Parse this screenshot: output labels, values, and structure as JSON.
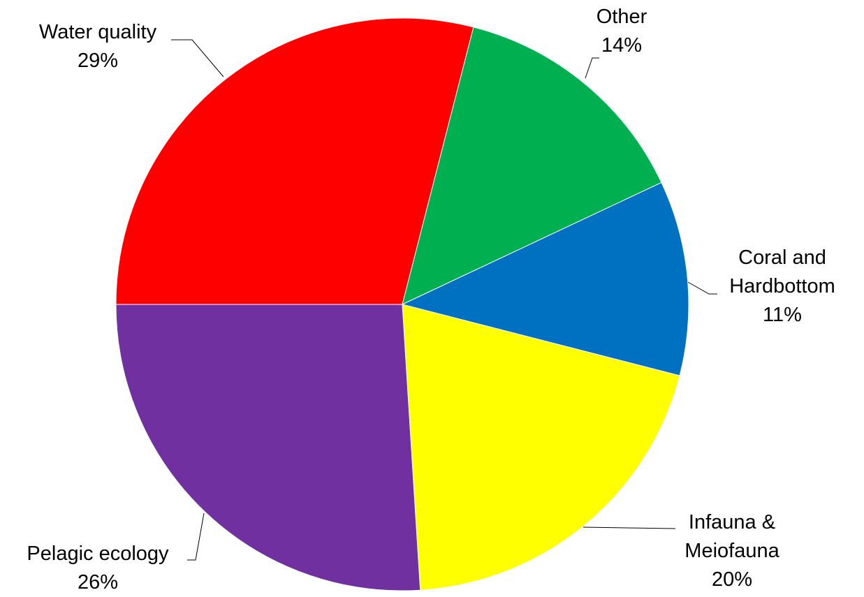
{
  "chart_data": {
    "type": "pie",
    "categories": [
      "Water quality",
      "Other",
      "Coral and Hardbottom",
      "Infauna & Meiofauna",
      "Pelagic ecology"
    ],
    "values": [
      29,
      14,
      11,
      20,
      26
    ],
    "value_labels": [
      "29%",
      "14%",
      "11%",
      "20%",
      "26%"
    ],
    "colors": [
      "#ff0000",
      "#00b050",
      "#0070c0",
      "#ffff00",
      "#7030a0"
    ]
  }
}
